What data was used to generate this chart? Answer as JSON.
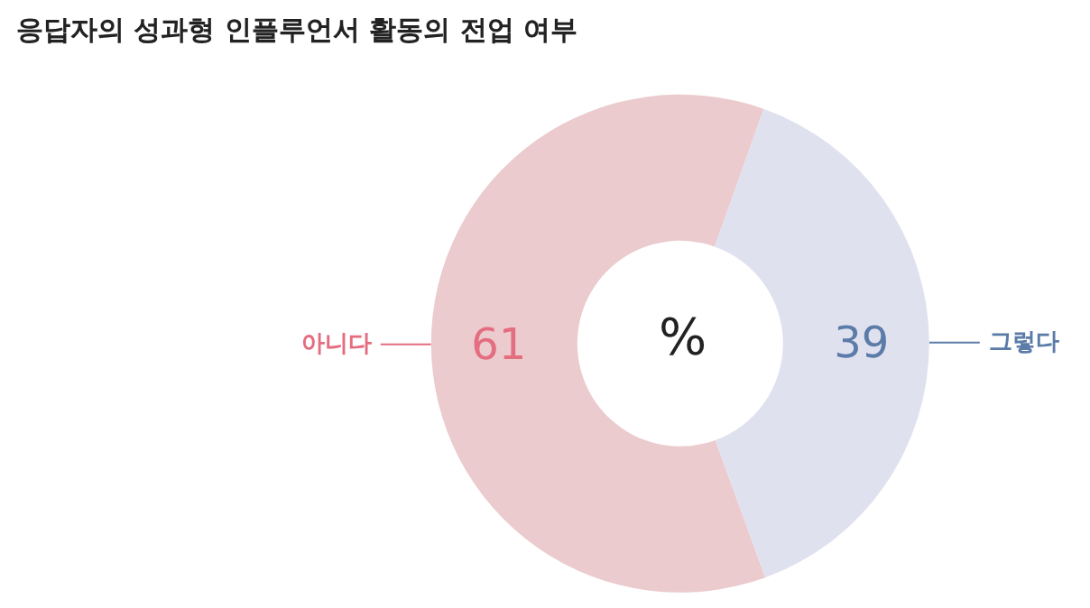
{
  "chart_data": {
    "type": "donut",
    "title": "응답자의 성과형 인플루언서 활동의 전업 여부",
    "categories": [
      "아니다",
      "그렇다"
    ],
    "values": [
      61,
      39
    ],
    "colors": [
      "#ebcbcd",
      "#e0e1ef"
    ],
    "data_labels": true,
    "legend": false,
    "annotations": [
      "%"
    ]
  }
}
